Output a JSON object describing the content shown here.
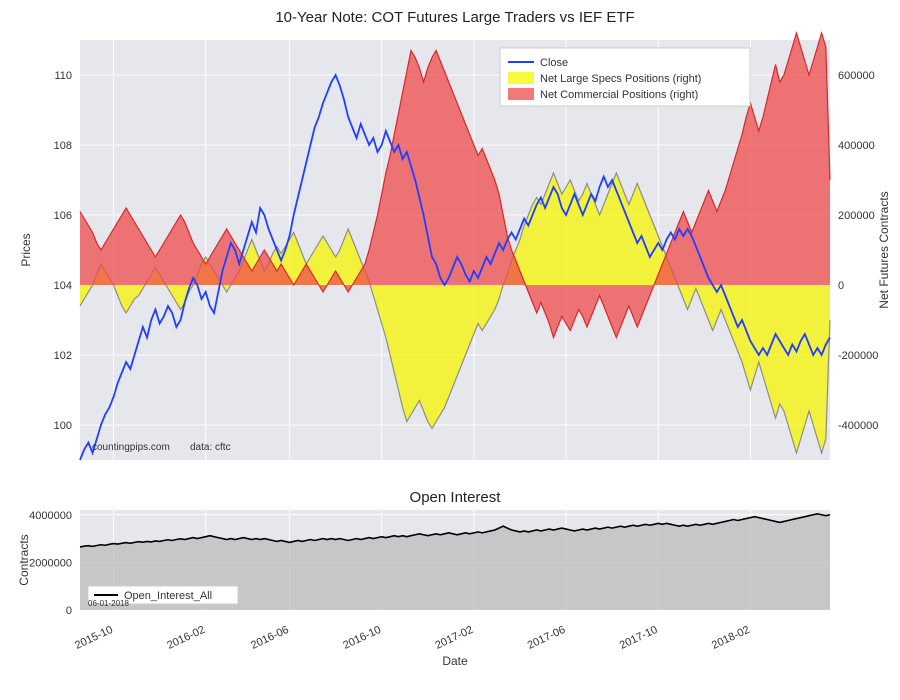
{
  "main_chart": {
    "title": "10-Year Note: COT Futures Large Traders vs IEF ETF",
    "plot_bg": "#e6e6ed",
    "grid_color": "#ffffff",
    "left_axis": {
      "label": "Prices",
      "min": 99,
      "max": 111,
      "ticks": [
        100,
        102,
        104,
        106,
        108,
        110
      ]
    },
    "right_axis": {
      "label": "Net Futures Contracts",
      "min": -500000,
      "max": 700000,
      "ticks": [
        -400000,
        -200000,
        0,
        200000,
        400000,
        600000
      ]
    },
    "x_axis": {
      "min": 0,
      "max": 180,
      "ticks": [
        {
          "i": 8,
          "label": "2015-10"
        },
        {
          "i": 30,
          "label": "2016-02"
        },
        {
          "i": 50,
          "label": "2016-06"
        },
        {
          "i": 72,
          "label": "2016-10"
        },
        {
          "i": 94,
          "label": "2017-02"
        },
        {
          "i": 116,
          "label": "2017-06"
        },
        {
          "i": 138,
          "label": "2017-10"
        },
        {
          "i": 160,
          "label": "2018-02"
        }
      ]
    },
    "legend": {
      "items": [
        {
          "label": "Close",
          "color": "#1f3fff",
          "type": "line"
        },
        {
          "label": "Net Large Specs Positions (right)",
          "color": "#f5f500",
          "type": "fill"
        },
        {
          "label": "Net Commercial Positions (right)",
          "color": "#ef4b4b",
          "type": "fill"
        }
      ]
    },
    "attribution_left": "countingpips.com",
    "attribution_right": "data: cftc",
    "close": [
      99.0,
      99.3,
      99.5,
      99.2,
      99.6,
      100.0,
      100.3,
      100.5,
      100.8,
      101.2,
      101.5,
      101.8,
      101.6,
      102.0,
      102.4,
      102.8,
      102.5,
      103.0,
      103.3,
      102.9,
      103.1,
      103.4,
      103.2,
      102.8,
      103.0,
      103.5,
      103.9,
      104.2,
      104.0,
      103.6,
      103.8,
      103.4,
      103.2,
      103.8,
      104.4,
      104.8,
      105.2,
      105.0,
      104.6,
      105.0,
      105.4,
      105.8,
      105.5,
      106.2,
      106.0,
      105.6,
      105.3,
      105.0,
      104.7,
      105.0,
      105.4,
      106.0,
      106.5,
      107.0,
      107.5,
      108.0,
      108.5,
      108.8,
      109.2,
      109.5,
      109.8,
      110.0,
      109.7,
      109.3,
      108.8,
      108.5,
      108.2,
      108.6,
      108.3,
      108.0,
      108.2,
      107.8,
      108.0,
      108.4,
      108.1,
      107.8,
      108.0,
      107.6,
      107.8,
      107.4,
      107.0,
      106.5,
      106.0,
      105.4,
      104.8,
      104.6,
      104.2,
      104.0,
      104.2,
      104.5,
      104.8,
      104.6,
      104.3,
      104.1,
      104.4,
      104.2,
      104.5,
      104.8,
      104.6,
      104.9,
      105.2,
      105.0,
      105.3,
      105.5,
      105.3,
      105.6,
      105.9,
      105.7,
      106.0,
      106.3,
      106.5,
      106.2,
      106.5,
      106.8,
      106.6,
      106.2,
      106.0,
      106.3,
      106.6,
      106.3,
      106.0,
      106.3,
      106.6,
      106.4,
      106.8,
      107.1,
      106.8,
      107.0,
      106.7,
      106.4,
      106.1,
      105.8,
      105.5,
      105.2,
      105.4,
      105.1,
      104.8,
      105.0,
      105.2,
      105.0,
      105.3,
      105.5,
      105.3,
      105.6,
      105.4,
      105.6,
      105.4,
      105.1,
      104.8,
      104.5,
      104.2,
      104.0,
      103.8,
      104.0,
      103.7,
      103.4,
      103.1,
      102.8,
      103.0,
      102.7,
      102.4,
      102.2,
      102.0,
      102.2,
      102.0,
      102.3,
      102.6,
      102.4,
      102.2,
      102.0,
      102.3,
      102.1,
      102.4,
      102.6,
      102.3,
      102.0,
      102.2,
      102.0,
      102.3,
      102.5
    ],
    "specs": [
      -60000,
      -40000,
      -20000,
      0,
      30000,
      60000,
      40000,
      20000,
      0,
      -30000,
      -60000,
      -80000,
      -60000,
      -40000,
      -30000,
      -10000,
      10000,
      30000,
      50000,
      30000,
      10000,
      -10000,
      -30000,
      -50000,
      -70000,
      -50000,
      -20000,
      0,
      30000,
      60000,
      80000,
      60000,
      40000,
      20000,
      0,
      -20000,
      0,
      20000,
      40000,
      70000,
      100000,
      130000,
      100000,
      70000,
      40000,
      60000,
      90000,
      110000,
      90000,
      110000,
      130000,
      150000,
      120000,
      90000,
      60000,
      80000,
      100000,
      120000,
      140000,
      120000,
      100000,
      80000,
      100000,
      130000,
      160000,
      130000,
      100000,
      70000,
      40000,
      10000,
      -30000,
      -70000,
      -110000,
      -150000,
      -200000,
      -250000,
      -300000,
      -350000,
      -390000,
      -370000,
      -350000,
      -330000,
      -360000,
      -390000,
      -410000,
      -390000,
      -370000,
      -350000,
      -320000,
      -290000,
      -260000,
      -230000,
      -200000,
      -170000,
      -140000,
      -110000,
      -130000,
      -110000,
      -90000,
      -70000,
      -40000,
      0,
      30000,
      70000,
      100000,
      130000,
      170000,
      200000,
      230000,
      250000,
      230000,
      260000,
      290000,
      320000,
      290000,
      260000,
      280000,
      300000,
      270000,
      240000,
      260000,
      290000,
      260000,
      230000,
      200000,
      230000,
      260000,
      290000,
      320000,
      290000,
      260000,
      230000,
      260000,
      290000,
      260000,
      230000,
      200000,
      170000,
      140000,
      110000,
      80000,
      50000,
      20000,
      -10000,
      -40000,
      -70000,
      -40000,
      -10000,
      -40000,
      -70000,
      -100000,
      -130000,
      -100000,
      -70000,
      -100000,
      -130000,
      -160000,
      -190000,
      -220000,
      -260000,
      -300000,
      -260000,
      -220000,
      -260000,
      -300000,
      -340000,
      -380000,
      -340000,
      -360000,
      -400000,
      -440000,
      -480000,
      -440000,
      -400000,
      -360000,
      -400000,
      -440000,
      -480000,
      -440000,
      -100000
    ],
    "comm": [
      210000,
      190000,
      170000,
      150000,
      120000,
      100000,
      120000,
      140000,
      160000,
      180000,
      200000,
      220000,
      200000,
      180000,
      160000,
      140000,
      120000,
      100000,
      80000,
      100000,
      120000,
      140000,
      160000,
      180000,
      200000,
      180000,
      150000,
      120000,
      100000,
      80000,
      60000,
      80000,
      100000,
      120000,
      140000,
      160000,
      140000,
      120000,
      100000,
      80000,
      60000,
      40000,
      60000,
      80000,
      100000,
      80000,
      60000,
      40000,
      60000,
      40000,
      20000,
      0,
      20000,
      40000,
      60000,
      40000,
      20000,
      0,
      -20000,
      0,
      20000,
      40000,
      20000,
      0,
      -20000,
      0,
      20000,
      40000,
      60000,
      100000,
      150000,
      200000,
      260000,
      320000,
      370000,
      430000,
      490000,
      550000,
      610000,
      670000,
      650000,
      620000,
      580000,
      620000,
      650000,
      670000,
      640000,
      610000,
      580000,
      550000,
      520000,
      490000,
      460000,
      430000,
      400000,
      370000,
      390000,
      360000,
      330000,
      300000,
      260000,
      200000,
      140000,
      100000,
      70000,
      40000,
      10000,
      -20000,
      -50000,
      -80000,
      -50000,
      -80000,
      -110000,
      -150000,
      -120000,
      -90000,
      -110000,
      -130000,
      -100000,
      -70000,
      -90000,
      -120000,
      -90000,
      -60000,
      -30000,
      -60000,
      -90000,
      -120000,
      -150000,
      -120000,
      -90000,
      -60000,
      -90000,
      -120000,
      -90000,
      -60000,
      -30000,
      0,
      30000,
      60000,
      90000,
      120000,
      150000,
      180000,
      210000,
      180000,
      150000,
      180000,
      210000,
      240000,
      270000,
      240000,
      210000,
      240000,
      270000,
      310000,
      350000,
      390000,
      430000,
      480000,
      520000,
      480000,
      440000,
      480000,
      530000,
      580000,
      630000,
      580000,
      600000,
      640000,
      680000,
      720000,
      680000,
      640000,
      600000,
      640000,
      680000,
      720000,
      680000,
      300000
    ],
    "series_colors": {
      "close": "#1f3fff",
      "specs_fill": "#f5f500",
      "specs_line": "#8c8c8c",
      "comm_fill": "#ef4b4b",
      "comm_line": "#d62828"
    },
    "fill_alpha": 0.75,
    "line_widths": {
      "close": 1.8,
      "series": 1.2
    }
  },
  "oi_chart": {
    "title": "Open Interest",
    "plot_bg": "#e6e6ed",
    "grid_color": "#ffffff",
    "left_axis": {
      "label": "Contracts",
      "min": 0,
      "max": 4200000,
      "ticks": [
        0,
        2000000,
        4000000
      ]
    },
    "legend_label": "Open_Interest_All",
    "date_note": "06-01-2018",
    "values": [
      2650000,
      2680000,
      2700000,
      2670000,
      2710000,
      2740000,
      2720000,
      2760000,
      2790000,
      2770000,
      2800000,
      2830000,
      2800000,
      2840000,
      2870000,
      2850000,
      2880000,
      2860000,
      2900000,
      2880000,
      2920000,
      2950000,
      2920000,
      2960000,
      2990000,
      2960000,
      3000000,
      3040000,
      3000000,
      3040000,
      3080000,
      3120000,
      3080000,
      3040000,
      3000000,
      2960000,
      3000000,
      2960000,
      3000000,
      3040000,
      3000000,
      2960000,
      3000000,
      2960000,
      3000000,
      2960000,
      2920000,
      2880000,
      2920000,
      2880000,
      2840000,
      2880000,
      2920000,
      2880000,
      2920000,
      2960000,
      2920000,
      2960000,
      3000000,
      2960000,
      3000000,
      2960000,
      3000000,
      2960000,
      2920000,
      2960000,
      3000000,
      2960000,
      3000000,
      3040000,
      3000000,
      3040000,
      3080000,
      3040000,
      3080000,
      3120000,
      3080000,
      3120000,
      3080000,
      3120000,
      3160000,
      3200000,
      3160000,
      3120000,
      3160000,
      3200000,
      3160000,
      3200000,
      3240000,
      3200000,
      3160000,
      3200000,
      3240000,
      3200000,
      3240000,
      3280000,
      3240000,
      3280000,
      3320000,
      3360000,
      3440000,
      3520000,
      3440000,
      3360000,
      3320000,
      3280000,
      3320000,
      3280000,
      3320000,
      3360000,
      3320000,
      3360000,
      3400000,
      3360000,
      3400000,
      3440000,
      3400000,
      3360000,
      3320000,
      3360000,
      3400000,
      3360000,
      3400000,
      3440000,
      3400000,
      3440000,
      3480000,
      3440000,
      3480000,
      3520000,
      3480000,
      3520000,
      3560000,
      3520000,
      3560000,
      3600000,
      3560000,
      3600000,
      3640000,
      3600000,
      3640000,
      3600000,
      3560000,
      3520000,
      3560000,
      3520000,
      3560000,
      3600000,
      3560000,
      3600000,
      3640000,
      3600000,
      3640000,
      3680000,
      3720000,
      3760000,
      3800000,
      3760000,
      3800000,
      3840000,
      3880000,
      3920000,
      3880000,
      3840000,
      3800000,
      3760000,
      3720000,
      3680000,
      3720000,
      3760000,
      3800000,
      3840000,
      3880000,
      3920000,
      3960000,
      4000000,
      4040000,
      4000000,
      3960000,
      4000000
    ],
    "fill_color": "#bfbfbf",
    "line_color": "#000000",
    "line_width": 1.6
  }
}
